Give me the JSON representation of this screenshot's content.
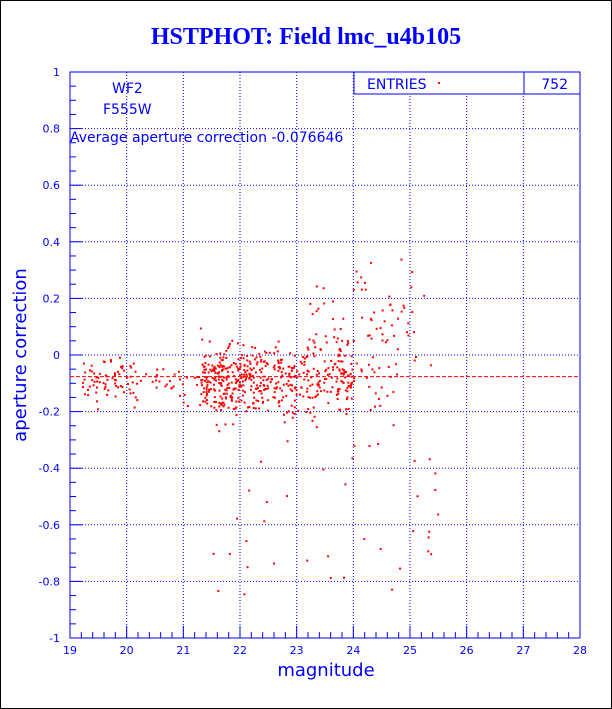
{
  "chart_data": {
    "type": "scatter",
    "title": "HSTPHOT: Field lmc_u4b105",
    "xlabel": "magnitude",
    "ylabel": "aperture correction",
    "xlim": [
      19,
      28
    ],
    "ylim": [
      -1,
      1
    ],
    "xticks": [
      "19",
      "20",
      "21",
      "22",
      "23",
      "24",
      "25",
      "26",
      "27",
      "28"
    ],
    "yticks": [
      "1",
      "0.8",
      "0.6",
      "0.4",
      "0.2",
      "0",
      "-0.2",
      "-0.4",
      "-0.6",
      "-0.8",
      "-1"
    ],
    "grid": true,
    "annotations": {
      "chip": "WF2",
      "filter": "F555W",
      "average_text": "Average aperture correction",
      "average_value": "-0.076646"
    },
    "stats_box": {
      "label": "ENTRIES",
      "value": "752"
    },
    "average_line": -0.0766,
    "colors": {
      "points": "#ff0000",
      "axes": "#0000ff",
      "grid": "#0000ff"
    }
  }
}
